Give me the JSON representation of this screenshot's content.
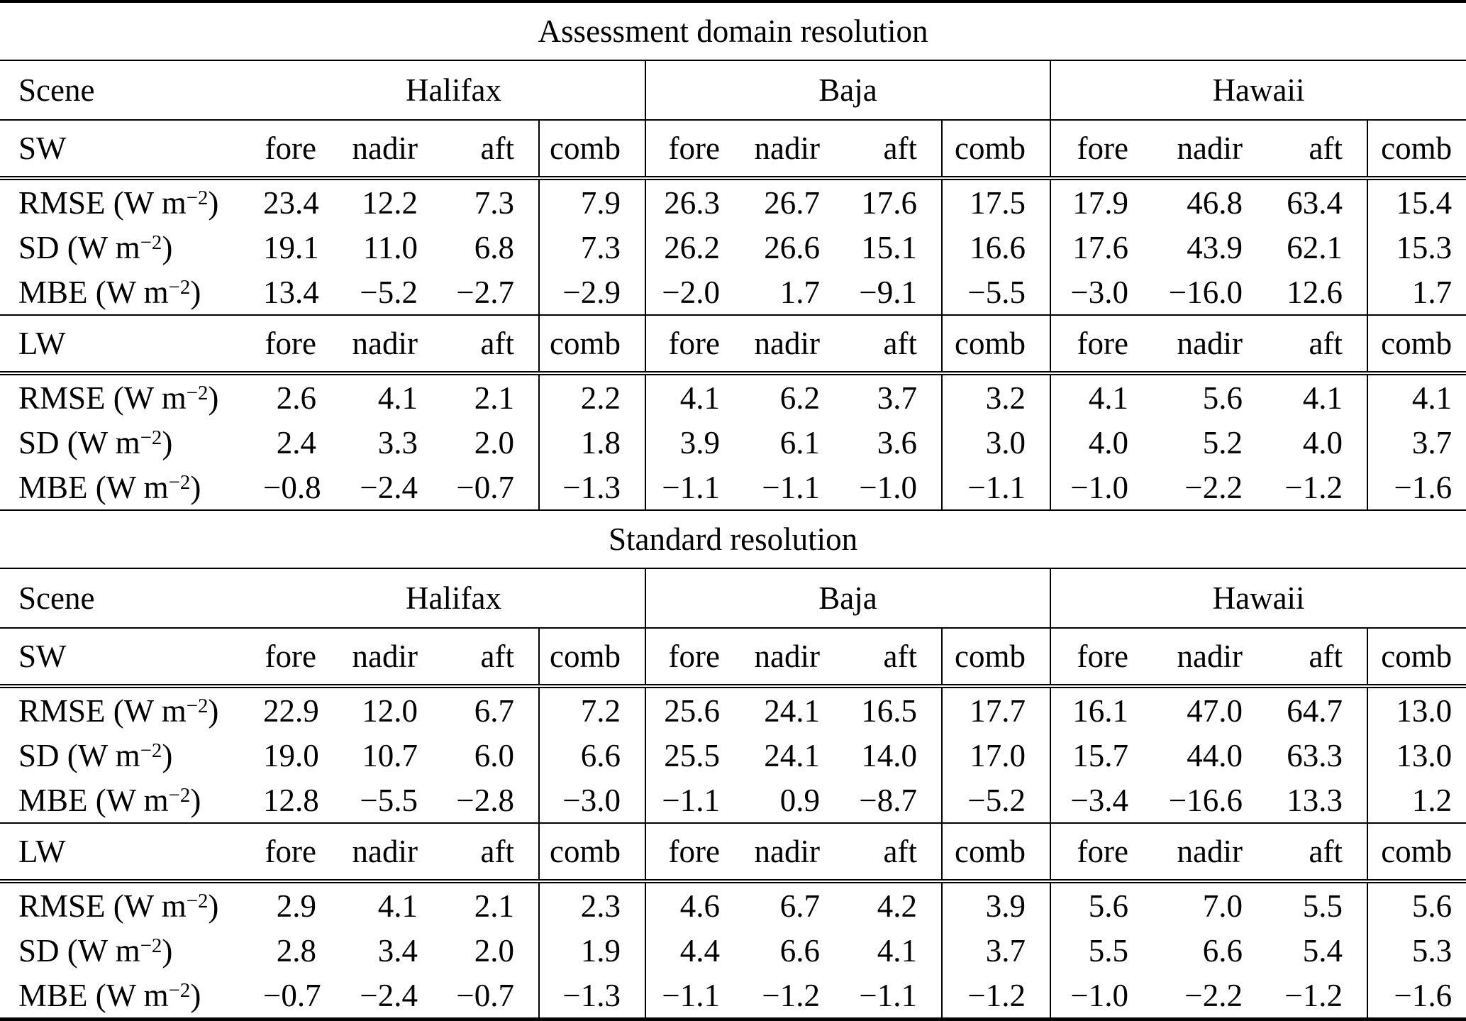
{
  "table": {
    "scene_header": "Scene",
    "groups": [
      "Halifax",
      "Baja",
      "Hawaii"
    ],
    "subcolumns": [
      "fore",
      "nadir",
      "aft",
      "comb"
    ],
    "unit": {
      "open": " (W m",
      "exp": "−2",
      "close": ")"
    },
    "sections": [
      {
        "title": "Assessment domain resolution",
        "bands": [
          {
            "label": "SW",
            "rows": [
              {
                "metric": "RMSE",
                "values": [
                  [
                    "23.4",
                    "12.2",
                    "7.3",
                    "7.9"
                  ],
                  [
                    "26.3",
                    "26.7",
                    "17.6",
                    "17.5"
                  ],
                  [
                    "17.9",
                    "46.8",
                    "63.4",
                    "15.4"
                  ]
                ]
              },
              {
                "metric": "SD",
                "values": [
                  [
                    "19.1",
                    "11.0",
                    "6.8",
                    "7.3"
                  ],
                  [
                    "26.2",
                    "26.6",
                    "15.1",
                    "16.6"
                  ],
                  [
                    "17.6",
                    "43.9",
                    "62.1",
                    "15.3"
                  ]
                ]
              },
              {
                "metric": "MBE",
                "values": [
                  [
                    "13.4",
                    "−5.2",
                    "−2.7",
                    "−2.9"
                  ],
                  [
                    "−2.0",
                    "1.7",
                    "−9.1",
                    "−5.5"
                  ],
                  [
                    "−3.0",
                    "−16.0",
                    "12.6",
                    "1.7"
                  ]
                ]
              }
            ]
          },
          {
            "label": "LW",
            "rows": [
              {
                "metric": "RMSE",
                "values": [
                  [
                    "2.6",
                    "4.1",
                    "2.1",
                    "2.2"
                  ],
                  [
                    "4.1",
                    "6.2",
                    "3.7",
                    "3.2"
                  ],
                  [
                    "4.1",
                    "5.6",
                    "4.1",
                    "4.1"
                  ]
                ]
              },
              {
                "metric": "SD",
                "values": [
                  [
                    "2.4",
                    "3.3",
                    "2.0",
                    "1.8"
                  ],
                  [
                    "3.9",
                    "6.1",
                    "3.6",
                    "3.0"
                  ],
                  [
                    "4.0",
                    "5.2",
                    "4.0",
                    "3.7"
                  ]
                ]
              },
              {
                "metric": "MBE",
                "values": [
                  [
                    "−0.8",
                    "−2.4",
                    "−0.7",
                    "−1.3"
                  ],
                  [
                    "−1.1",
                    "−1.1",
                    "−1.0",
                    "−1.1"
                  ],
                  [
                    "−1.0",
                    "−2.2",
                    "−1.2",
                    "−1.6"
                  ]
                ]
              }
            ]
          }
        ]
      },
      {
        "title": "Standard resolution",
        "bands": [
          {
            "label": "SW",
            "rows": [
              {
                "metric": "RMSE",
                "values": [
                  [
                    "22.9",
                    "12.0",
                    "6.7",
                    "7.2"
                  ],
                  [
                    "25.6",
                    "24.1",
                    "16.5",
                    "17.7"
                  ],
                  [
                    "16.1",
                    "47.0",
                    "64.7",
                    "13.0"
                  ]
                ]
              },
              {
                "metric": "SD",
                "values": [
                  [
                    "19.0",
                    "10.7",
                    "6.0",
                    "6.6"
                  ],
                  [
                    "25.5",
                    "24.1",
                    "14.0",
                    "17.0"
                  ],
                  [
                    "15.7",
                    "44.0",
                    "63.3",
                    "13.0"
                  ]
                ]
              },
              {
                "metric": "MBE",
                "values": [
                  [
                    "12.8",
                    "−5.5",
                    "−2.8",
                    "−3.0"
                  ],
                  [
                    "−1.1",
                    "0.9",
                    "−8.7",
                    "−5.2"
                  ],
                  [
                    "−3.4",
                    "−16.6",
                    "13.3",
                    "1.2"
                  ]
                ]
              }
            ]
          },
          {
            "label": "LW",
            "rows": [
              {
                "metric": "RMSE",
                "values": [
                  [
                    "2.9",
                    "4.1",
                    "2.1",
                    "2.3"
                  ],
                  [
                    "4.6",
                    "6.7",
                    "4.2",
                    "3.9"
                  ],
                  [
                    "5.6",
                    "7.0",
                    "5.5",
                    "5.6"
                  ]
                ]
              },
              {
                "metric": "SD",
                "values": [
                  [
                    "2.8",
                    "3.4",
                    "2.0",
                    "1.9"
                  ],
                  [
                    "4.4",
                    "6.6",
                    "4.1",
                    "3.7"
                  ],
                  [
                    "5.5",
                    "6.6",
                    "5.4",
                    "5.3"
                  ]
                ]
              },
              {
                "metric": "MBE",
                "values": [
                  [
                    "−0.7",
                    "−2.4",
                    "−0.7",
                    "−1.3"
                  ],
                  [
                    "−1.1",
                    "−1.2",
                    "−1.1",
                    "−1.2"
                  ],
                  [
                    "−1.0",
                    "−2.2",
                    "−1.2",
                    "−1.6"
                  ]
                ]
              }
            ]
          }
        ]
      }
    ]
  }
}
